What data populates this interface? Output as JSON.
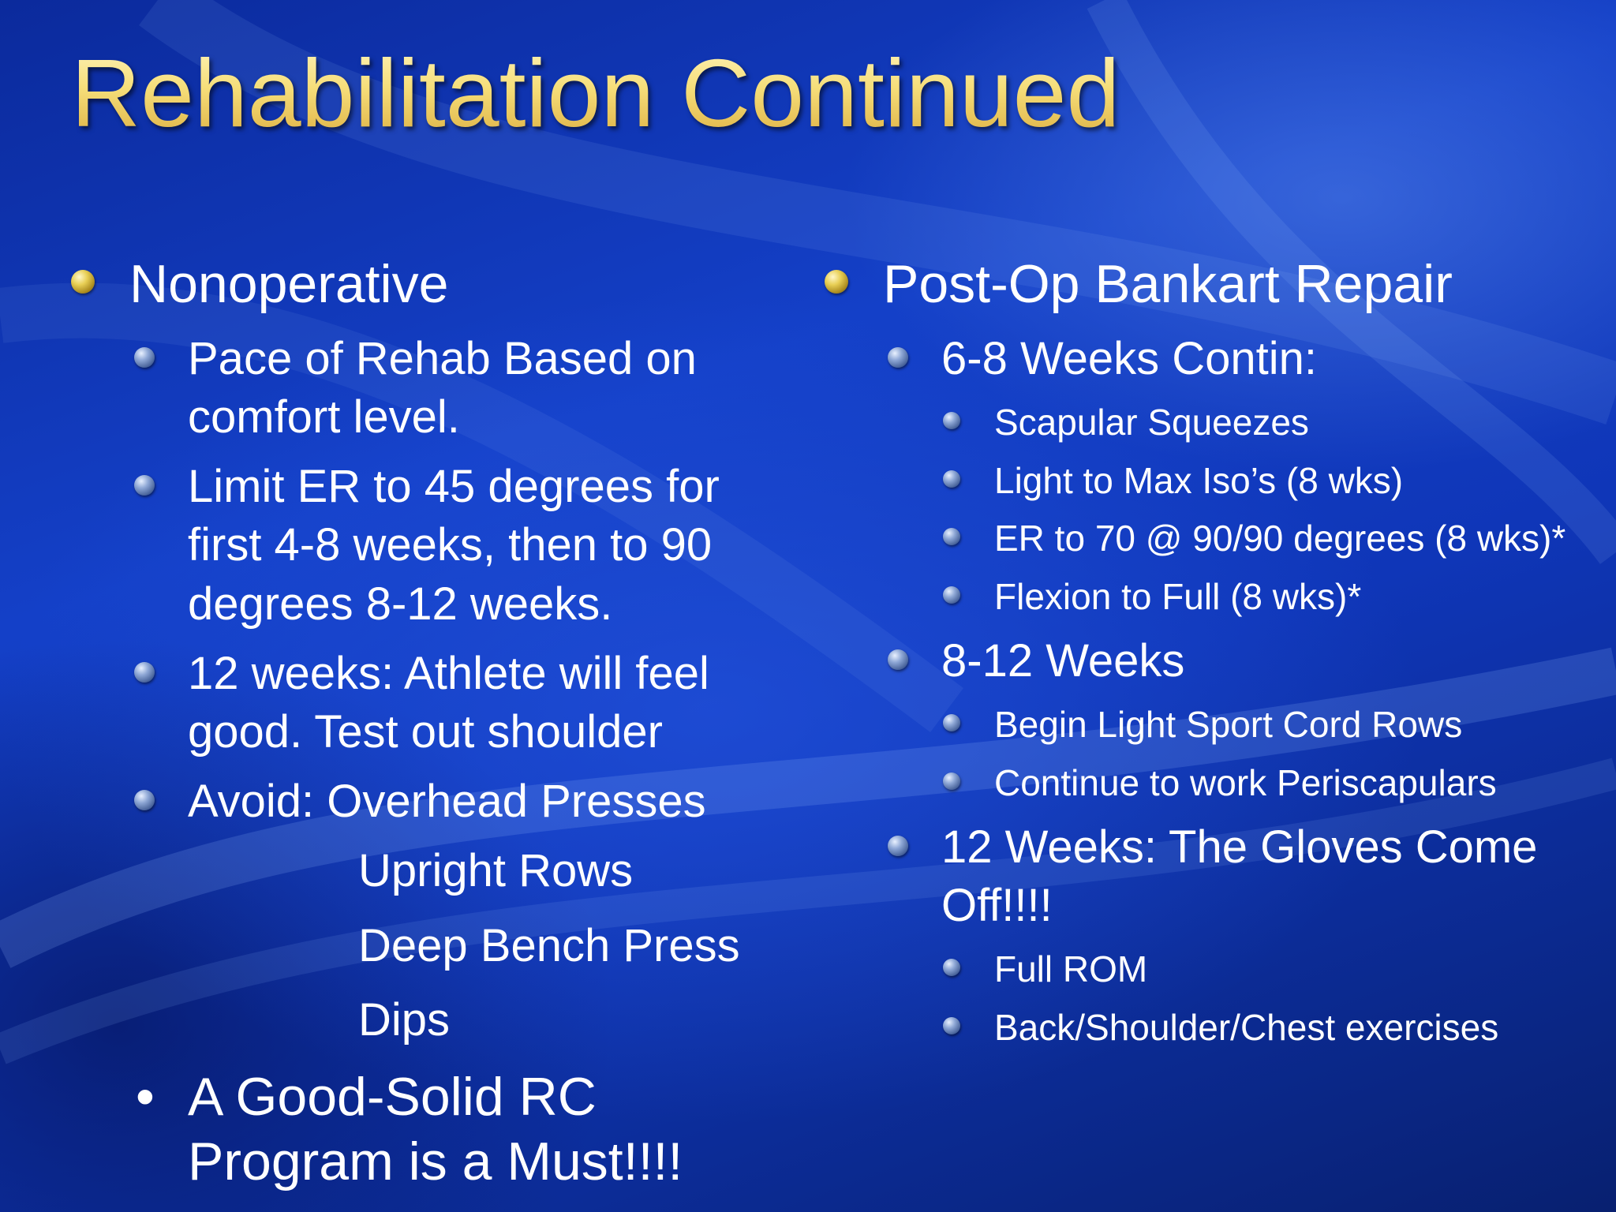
{
  "slide": {
    "title": "Rehabilitation Continued",
    "left": {
      "heading": "Nonoperative",
      "items": [
        "Pace of Rehab Based on comfort level.",
        "Limit ER to 45 degrees for first 4-8 weeks, then to 90 degrees 8-12 weeks.",
        "12 weeks:  Athlete will feel good.  Test out shoulder",
        "Avoid:  Overhead Presses"
      ],
      "avoid_continued": [
        "Upright Rows",
        "Deep Bench Press",
        "Dips"
      ],
      "bullet_marker": "•",
      "closing": "A Good-Solid RC Program is a Must!!!!"
    },
    "right": {
      "heading": "Post-Op Bankart Repair",
      "sections": [
        {
          "label": "6-8 Weeks Contin:",
          "items": [
            "Scapular Squeezes",
            "Light to Max Iso’s (8 wks)",
            "ER to 70 @ 90/90 degrees (8 wks)*",
            "Flexion to Full (8 wks)*"
          ]
        },
        {
          "label": "8-12 Weeks",
          "items": [
            "Begin Light Sport Cord Rows",
            "Continue to work Periscapulars"
          ]
        },
        {
          "label": "12 Weeks: The Gloves Come Off!!!!",
          "items": [
            "Full ROM",
            "Back/Shoulder/Chest exercises"
          ]
        }
      ]
    }
  }
}
